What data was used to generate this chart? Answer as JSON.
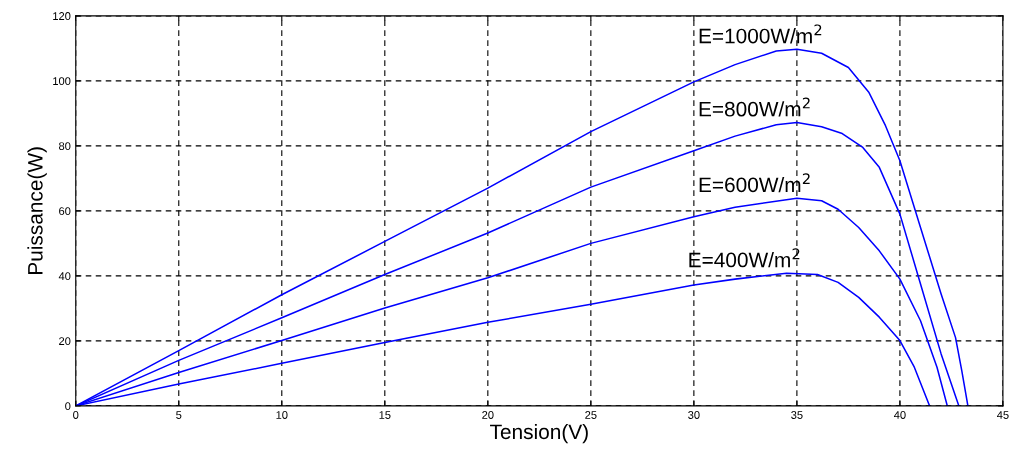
{
  "chart_data": {
    "type": "line",
    "xlabel": "Tension(V)",
    "ylabel": "Puissance(W)",
    "xlim": [
      0,
      45
    ],
    "xticks": [
      0,
      5,
      10,
      15,
      20,
      25,
      30,
      35,
      40,
      45
    ],
    "ylim": [
      0,
      120
    ],
    "yticks": [
      0,
      20,
      40,
      60,
      80,
      100,
      120
    ],
    "grid": true,
    "marker": "none",
    "line_style": "solid",
    "series": [
      {
        "name": "E=1000W/m$^{2}$",
        "color": "#0000ff",
        "x": [
          0,
          5,
          10,
          15,
          20,
          25,
          30,
          32,
          34,
          35,
          36.2,
          37.5,
          38.5,
          39.3,
          40,
          41,
          42,
          42.7,
          43,
          43.3
        ],
        "values": [
          0,
          17,
          34.2,
          50.6,
          67,
          84.4,
          99.7,
          105,
          109.2,
          109.7,
          108.5,
          104.1,
          96.4,
          86.2,
          75.4,
          54.9,
          34.4,
          21,
          10.9,
          0
        ]
      },
      {
        "name": "E=800W/m$^{2}$",
        "color": "#0000ff",
        "x": [
          0,
          5,
          10,
          15,
          20,
          25,
          30,
          32,
          34,
          35,
          36.2,
          37.2,
          38.2,
          39,
          40,
          41,
          42,
          42.86
        ],
        "values": [
          0,
          14,
          27.1,
          40.4,
          53.2,
          67.3,
          78.5,
          83,
          86.5,
          87.2,
          85.9,
          83.8,
          79.5,
          73.4,
          59,
          37.5,
          16,
          0
        ]
      },
      {
        "name": "E=600W/m$^{2}$",
        "color": "#0000ff",
        "x": [
          0,
          5,
          10,
          15,
          20,
          25,
          30,
          32,
          35,
          36.2,
          37,
          38,
          39,
          40,
          41,
          41.8,
          42.3
        ],
        "values": [
          0,
          10.3,
          20.1,
          30.1,
          39.4,
          50,
          58.2,
          61.1,
          63.9,
          63.1,
          60.5,
          54.9,
          47.7,
          39,
          26.2,
          11.9,
          0
        ]
      },
      {
        "name": "E=400W/m$^{2}$",
        "color": "#0000ff",
        "x": [
          0,
          5,
          10,
          15,
          20,
          25,
          30,
          32,
          34.5,
          36,
          37,
          38,
          39,
          40,
          40.7,
          41.44
        ],
        "values": [
          0,
          6.7,
          13.1,
          19.5,
          25.7,
          31.3,
          37.2,
          39,
          40.8,
          40.4,
          38,
          33.4,
          27.3,
          20.1,
          11.9,
          0
        ]
      }
    ]
  }
}
